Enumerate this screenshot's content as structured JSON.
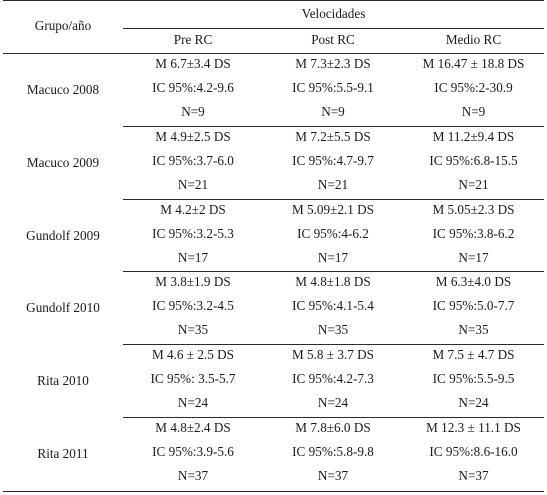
{
  "header": {
    "group_year": "Grupo/año",
    "velocities": "Velocidades",
    "columns": [
      "Pre RC",
      "Post RC",
      "Medio RC"
    ]
  },
  "rows": [
    {
      "group": "Macuco 2008",
      "cells": [
        [
          "M 6.7±3.4 DS",
          "IC 95%:4.2-9.6",
          "N=9"
        ],
        [
          "M 7.3±2.3 DS",
          "IC 95%:5.5-9.1",
          "N=9"
        ],
        [
          "M 16.47 ± 18.8 DS",
          "IC 95%:2-30.9",
          "N=9"
        ]
      ]
    },
    {
      "group": "Macuco 2009",
      "cells": [
        [
          "M 4.9±2.5 DS",
          "IC 95%:3.7-6.0",
          "N=21"
        ],
        [
          "M 7.2±5.5 DS",
          "IC 95%:4.7-9.7",
          "N=21"
        ],
        [
          "M 11.2±9.4 DS",
          "IC 95%:6.8-15.5",
          "N=21"
        ]
      ]
    },
    {
      "group": "Gundolf 2009",
      "cells": [
        [
          "M 4.2±2 DS",
          "IC 95%:3.2-5.3",
          "N=17"
        ],
        [
          "M 5.09±2.1 DS",
          "IC 95%:4-6.2",
          "N=17"
        ],
        [
          "M 5.05±2.3 DS",
          "IC 95%:3.8-6.2",
          "N=17"
        ]
      ]
    },
    {
      "group": "Gundolf 2010",
      "cells": [
        [
          "M 3.8±1.9 DS",
          "IC 95%:3.2-4.5",
          "N=35"
        ],
        [
          "M 4.8±1.8 DS",
          "IC 95%:4.1-5.4",
          "N=35"
        ],
        [
          "M 6.3±4.0 DS",
          "IC 95%:5.0-7.7",
          "N=35"
        ]
      ]
    },
    {
      "group": "Rita 2010",
      "cells": [
        [
          "M 4.6 ± 2.5 DS",
          "IC 95%: 3.5-5.7",
          "N=24"
        ],
        [
          "M 5.8 ± 3.7 DS",
          "IC 95%:4.2-7.3",
          "N=24"
        ],
        [
          "M 7.5 ± 4.7 DS",
          "IC 95%:5.5-9.5",
          "N=24"
        ]
      ]
    },
    {
      "group": "Rita 2011",
      "cells": [
        [
          "M 4.8±2.4 DS",
          "IC 95%:3.9-5.6",
          "N=37"
        ],
        [
          "M 7.8±6.0 DS",
          "IC 95%:5.8-9.8",
          "N=37"
        ],
        [
          "M 12.3 ± 11.1 DS",
          "IC 95%:8.6-16.0",
          "N=37"
        ]
      ]
    }
  ]
}
